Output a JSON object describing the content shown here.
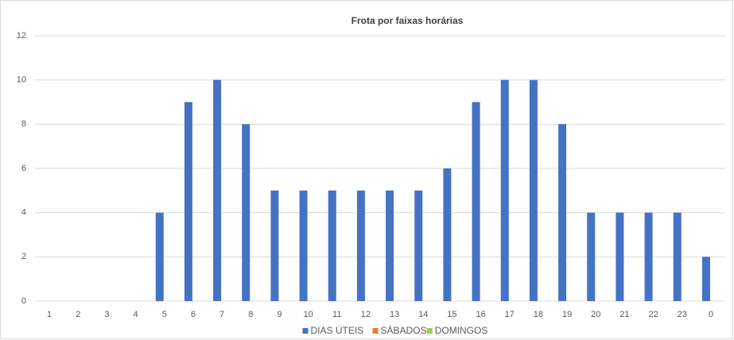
{
  "chart_data": {
    "type": "bar",
    "title": "Frota por faixas horárias",
    "categories": [
      "1",
      "2",
      "3",
      "4",
      "5",
      "6",
      "7",
      "8",
      "9",
      "10",
      "11",
      "12",
      "13",
      "14",
      "15",
      "16",
      "17",
      "18",
      "19",
      "20",
      "21",
      "22",
      "23",
      "0"
    ],
    "series": [
      {
        "name": "DIAS ÚTEIS",
        "color": "#4472c4",
        "values": [
          0,
          0,
          0,
          0,
          4,
          9,
          10,
          8,
          5,
          5,
          5,
          5,
          5,
          5,
          6,
          9,
          10,
          10,
          8,
          4,
          4,
          4,
          4,
          2
        ]
      },
      {
        "name": "SÁBADOS",
        "color": "#ed7d31",
        "values": [
          0,
          0,
          0,
          0,
          0,
          0,
          0,
          0,
          0,
          0,
          0,
          0,
          0,
          0,
          0,
          0,
          0,
          0,
          0,
          0,
          0,
          0,
          0,
          0
        ]
      },
      {
        "name": "DOMINGOS",
        "color": "#92d050",
        "values": [
          0,
          0,
          0,
          0,
          0,
          0,
          0,
          0,
          0,
          0,
          0,
          0,
          0,
          0,
          0,
          0,
          0,
          0,
          0,
          0,
          0,
          0,
          0,
          0
        ]
      }
    ],
    "ylim": [
      0,
      12
    ],
    "yticks": [
      0,
      2,
      4,
      6,
      8,
      10,
      12
    ],
    "grid": true,
    "legend": "bottom"
  }
}
